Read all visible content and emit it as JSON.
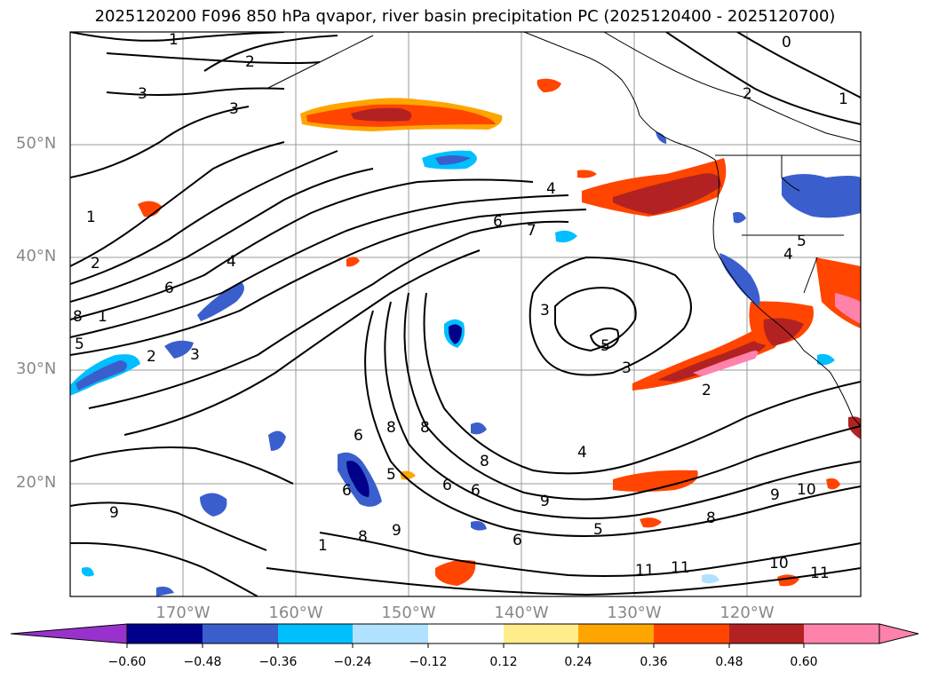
{
  "title": "2025120200 F096 850 hPa qvapor, river basin precipitation PC (2025120400 - 2025120700)",
  "latitude_labels": [
    "50°N",
    "40°N",
    "30°N",
    "20°N"
  ],
  "longitude_labels": [
    "170°W",
    "160°W",
    "150°W",
    "140°W",
    "130°W",
    "120°W"
  ],
  "colorbar": {
    "ticks": [
      "−0.60",
      "−0.48",
      "−0.36",
      "−0.24",
      "−0.12",
      "0.12",
      "0.24",
      "0.36",
      "0.48",
      "0.60"
    ],
    "colors": [
      "#9932cc",
      "#00008b",
      "#3a5fcd",
      "#00bfff",
      "#b0e2ff",
      "#ffffff",
      "#ffec8b",
      "#ffa500",
      "#ff4500",
      "#b22222",
      "#ff82ab"
    ]
  },
  "contour_labels": [
    "1",
    "2",
    "3",
    "3",
    "1",
    "2",
    "4",
    "6",
    "8",
    "1",
    "5",
    "2",
    "3",
    "4",
    "6",
    "7",
    "3",
    "5",
    "3",
    "2",
    "4",
    "6",
    "8",
    "8",
    "8",
    "6",
    "5",
    "6",
    "6",
    "9",
    "9",
    "8",
    "1",
    "6",
    "5",
    "9",
    "10",
    "8",
    "11",
    "11",
    "10",
    "11",
    "9",
    "0",
    "2",
    "1",
    "5",
    "4"
  ]
}
